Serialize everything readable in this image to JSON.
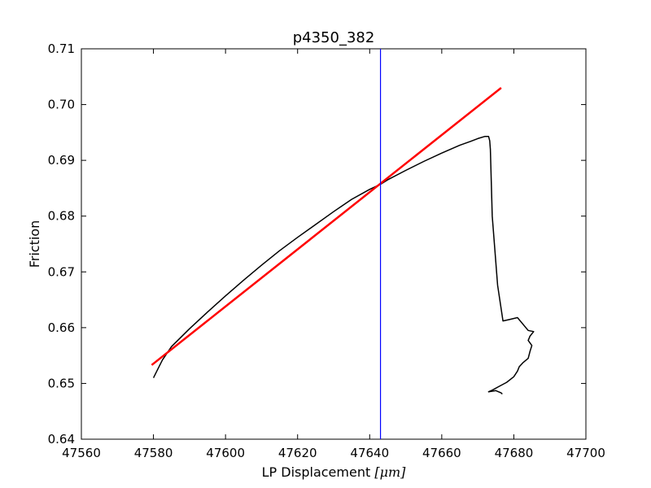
{
  "chart_data": {
    "type": "line",
    "title": "p4350_382",
    "xlabel_main": "LP Displacement ",
    "xlabel_unit": "[μm]",
    "ylabel": "Friction",
    "xlim": [
      47560,
      47700
    ],
    "ylim": [
      0.64,
      0.71
    ],
    "x_ticks": [
      47560,
      47580,
      47600,
      47620,
      47640,
      47660,
      47680,
      47700
    ],
    "x_tick_labels": [
      "47560",
      "47580",
      "47600",
      "47620",
      "47640",
      "47660",
      "47680",
      "47700"
    ],
    "y_ticks": [
      0.64,
      0.65,
      0.66,
      0.67,
      0.68,
      0.69,
      0.7,
      0.71
    ],
    "y_tick_labels": [
      "0.64",
      "0.65",
      "0.66",
      "0.67",
      "0.68",
      "0.69",
      "0.70",
      "0.71"
    ],
    "grid": false,
    "series": [
      {
        "color": "#000000",
        "x": [
          47580.0,
          47581.0,
          47582.5,
          47585.0,
          47590.0,
          47595.0,
          47600.0,
          47605.0,
          47610.0,
          47615.0,
          47620.0,
          47625.0,
          47630.0,
          47635.0,
          47640.0,
          47643.0,
          47645.0,
          47650.0,
          47655.0,
          47660.0,
          47665.0,
          47668.0,
          47670.0,
          47672.0,
          47673.0,
          47673.3,
          47673.5,
          47674.0,
          47675.5,
          47677.0,
          47679.0,
          47681.0,
          47684.0,
          47685.5,
          47684.5,
          47684.0,
          47685.0,
          47684.5,
          47684.0,
          47682.5,
          47681.5,
          47681.0,
          47680.0,
          47678.0,
          47676.0,
          47674.0,
          47673.0,
          47675.0,
          47676.5,
          47676.8
        ],
        "y": [
          0.651,
          0.6523,
          0.6542,
          0.6566,
          0.6598,
          0.6628,
          0.6657,
          0.6685,
          0.6712,
          0.6738,
          0.6762,
          0.6785,
          0.6808,
          0.683,
          0.6848,
          0.6857,
          0.6865,
          0.6882,
          0.6898,
          0.6913,
          0.6927,
          0.6934,
          0.6939,
          0.6943,
          0.6943,
          0.6935,
          0.692,
          0.68,
          0.6676,
          0.6612,
          0.6615,
          0.6618,
          0.6595,
          0.6593,
          0.6585,
          0.6577,
          0.6568,
          0.6558,
          0.6545,
          0.6537,
          0.653,
          0.6522,
          0.6512,
          0.6502,
          0.6495,
          0.6488,
          0.6485,
          0.6487,
          0.6483,
          0.6481
        ]
      },
      {
        "color": "#ff0000",
        "x": [
          47579.5,
          47676.5
        ],
        "y": [
          0.6533,
          0.703
        ]
      }
    ],
    "vertical_line": {
      "x": 47643,
      "color": "#0000ff"
    }
  }
}
